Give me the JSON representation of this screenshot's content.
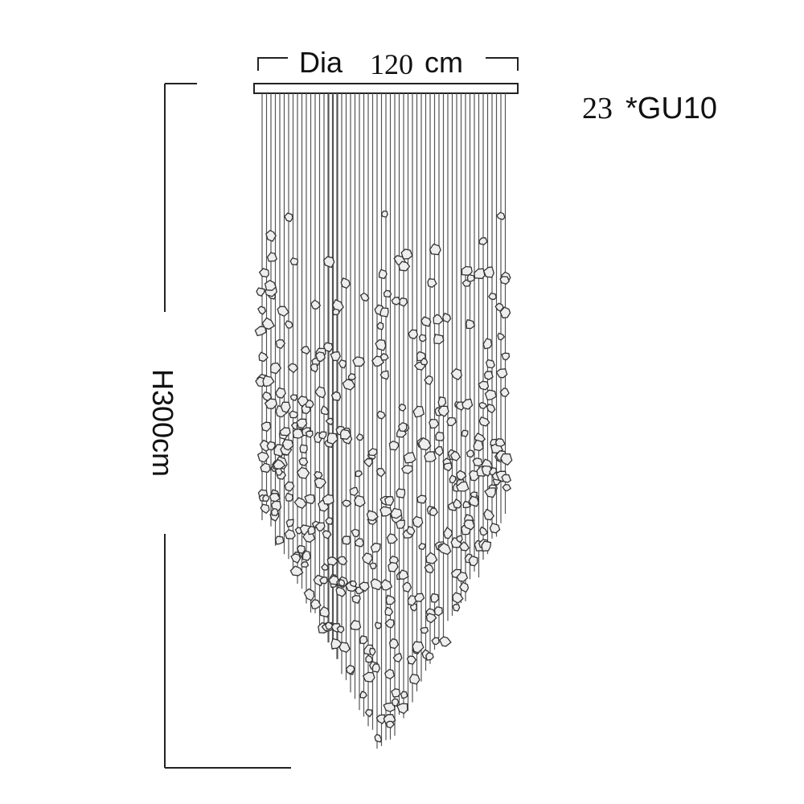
{
  "dimensions": {
    "diameter_label": "Dia",
    "diameter_value": "120",
    "diameter_unit": "cm",
    "height_label": "H300cm"
  },
  "spec": {
    "count": "23",
    "bulb": "*GU10"
  },
  "colors": {
    "line": "#222222",
    "rod": "#555555",
    "crystal": "#333333"
  }
}
